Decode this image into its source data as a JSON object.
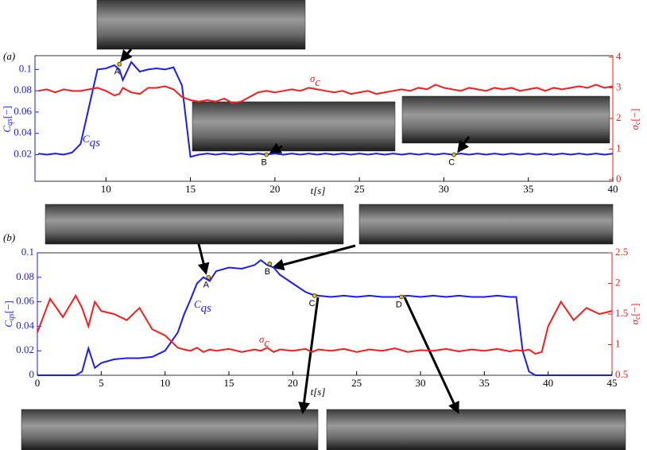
{
  "chart_data": [
    {
      "type": "line",
      "panel": "(a)",
      "xlabel": "t[s]",
      "ylabel": {
        "main": "C",
        "sub": "qs",
        "unit": "[−]"
      },
      "y2label": {
        "main": "σ",
        "sub": "c",
        "unit": "[−]"
      },
      "xlim": [
        5.8,
        40
      ],
      "xticks": [
        10,
        15,
        20,
        25,
        30,
        35,
        40
      ],
      "ylim": [
        -0.005,
        0.113
      ],
      "yticks": [
        0.02,
        0.04,
        0.06,
        0.08,
        0.1
      ],
      "y2lim": [
        -0.05,
        4.05
      ],
      "y2ticks": [
        0,
        1,
        2,
        3,
        4
      ],
      "x": [
        6,
        6.5,
        7,
        7.5,
        8,
        8.5,
        9,
        9.5,
        10,
        10.5,
        10.8,
        11,
        11.5,
        12,
        12.5,
        13,
        13.5,
        14,
        14.5,
        15,
        15.5,
        16,
        16.5,
        17,
        17.5,
        18,
        18.5,
        19,
        19.5,
        20,
        20.5,
        21,
        21.5,
        22,
        22.5,
        23,
        23.5,
        24,
        24.5,
        25,
        25.5,
        26,
        26.5,
        27,
        27.5,
        28,
        28.5,
        29,
        29.5,
        30,
        30.5,
        31,
        31.5,
        32,
        32.5,
        33,
        33.5,
        34,
        34.5,
        35,
        35.5,
        36,
        36.5,
        37,
        37.5,
        38,
        38.5,
        39,
        39.5,
        40
      ],
      "series": [
        {
          "name": "C",
          "subscript": "qs",
          "color": "#1a1aff",
          "values": [
            0.021,
            0.02,
            0.021,
            0.02,
            0.022,
            0.03,
            0.065,
            0.1,
            0.101,
            0.104,
            0.1,
            0.09,
            0.107,
            0.098,
            0.1,
            0.101,
            0.1,
            0.102,
            0.085,
            0.018,
            0.02,
            0.021,
            0.02,
            0.021,
            0.02,
            0.021,
            0.02,
            0.021,
            0.02,
            0.021,
            0.02,
            0.021,
            0.02,
            0.021,
            0.02,
            0.021,
            0.02,
            0.021,
            0.02,
            0.021,
            0.02,
            0.021,
            0.02,
            0.021,
            0.02,
            0.021,
            0.02,
            0.021,
            0.02,
            0.021,
            0.02,
            0.021,
            0.02,
            0.021,
            0.02,
            0.021,
            0.02,
            0.021,
            0.02,
            0.021,
            0.02,
            0.021,
            0.02,
            0.021,
            0.02,
            0.021,
            0.02,
            0.021,
            0.02,
            0.021
          ]
        },
        {
          "name": "σ",
          "subscript": "c",
          "color": "#ff1a1a",
          "axis": "y2",
          "values": [
            2.9,
            2.95,
            2.85,
            2.95,
            2.9,
            2.9,
            2.95,
            3.0,
            2.9,
            2.75,
            2.8,
            3.0,
            2.85,
            2.8,
            3.0,
            3.0,
            3.05,
            2.95,
            2.7,
            2.6,
            2.55,
            2.6,
            2.55,
            2.65,
            2.5,
            2.55,
            2.7,
            2.85,
            2.9,
            2.85,
            2.9,
            2.95,
            2.9,
            3.0,
            2.95,
            2.9,
            2.85,
            2.9,
            2.8,
            2.85,
            2.9,
            2.8,
            2.85,
            2.9,
            2.95,
            2.9,
            3.0,
            2.95,
            3.1,
            3.0,
            2.95,
            2.9,
            3.0,
            2.95,
            2.9,
            3.0,
            2.95,
            3.0,
            2.9,
            2.95,
            3.0,
            2.9,
            3.0,
            2.95,
            3.0,
            3.05,
            3.0,
            3.1,
            3.0,
            3.05
          ]
        }
      ],
      "annotations": [
        {
          "text": "A",
          "x": 10.8,
          "y": 0.105
        },
        {
          "text": "B",
          "x": 19.5,
          "y": 0.02
        },
        {
          "text": "C",
          "x": 30.6,
          "y": 0.02
        }
      ]
    },
    {
      "type": "line",
      "panel": "(b)",
      "xlabel": "t[s]",
      "ylabel": {
        "main": "C",
        "sub": "qs",
        "unit": "[−]"
      },
      "y2label": {
        "main": "σ",
        "sub": "c",
        "unit": "[−]"
      },
      "xlim": [
        0,
        45
      ],
      "xticks": [
        0,
        5,
        10,
        15,
        20,
        25,
        30,
        35,
        40,
        45
      ],
      "ylim": [
        0,
        0.1
      ],
      "yticks": [
        0,
        0.02,
        0.04,
        0.06,
        0.08,
        0.1
      ],
      "y2lim": [
        0.5,
        2.5
      ],
      "y2ticks": [
        0.5,
        1,
        1.5,
        2,
        2.5
      ],
      "x": [
        0,
        1,
        2,
        3,
        3.5,
        4,
        4.5,
        5,
        6,
        7,
        8,
        9,
        10,
        11,
        11.5,
        12,
        12.5,
        13,
        13.5,
        14,
        15,
        16,
        17,
        17.5,
        18,
        18.5,
        19,
        20,
        21,
        21.5,
        22,
        23,
        24,
        25,
        26,
        27,
        28,
        29,
        30,
        31,
        32,
        33,
        34,
        35,
        36,
        37,
        37.5,
        38,
        38.5,
        39,
        39.5,
        40,
        40.5,
        41,
        42,
        43,
        44,
        45
      ],
      "series": [
        {
          "name": "C",
          "subscript": "qs",
          "color": "#1a1aff",
          "values": [
            0,
            0,
            0,
            0,
            0.003,
            0.022,
            0.006,
            0.01,
            0.013,
            0.014,
            0.014,
            0.015,
            0.02,
            0.035,
            0.05,
            0.062,
            0.075,
            0.08,
            0.077,
            0.085,
            0.088,
            0.087,
            0.09,
            0.094,
            0.09,
            0.088,
            0.082,
            0.075,
            0.068,
            0.066,
            0.065,
            0.064,
            0.065,
            0.064,
            0.065,
            0.064,
            0.064,
            0.065,
            0.064,
            0.065,
            0.064,
            0.065,
            0.064,
            0.064,
            0.065,
            0.064,
            0.064,
            0.02,
            0.003,
            0,
            0,
            0,
            0,
            0,
            0,
            0,
            0,
            0
          ]
        },
        {
          "name": "σ",
          "subscript": "c",
          "color": "#ff1a1a",
          "axis": "y2",
          "values": [
            1.2,
            1.75,
            1.45,
            1.8,
            1.6,
            1.3,
            1.7,
            1.55,
            1.5,
            1.4,
            1.6,
            1.25,
            1.15,
            0.95,
            0.92,
            0.9,
            0.95,
            0.88,
            0.92,
            0.9,
            0.93,
            0.88,
            0.92,
            0.9,
            0.95,
            0.88,
            0.92,
            0.9,
            0.93,
            0.88,
            0.92,
            0.9,
            0.93,
            0.88,
            0.92,
            0.9,
            0.94,
            0.88,
            0.91,
            0.9,
            0.93,
            0.89,
            0.92,
            0.9,
            0.93,
            0.89,
            0.91,
            0.9,
            0.92,
            0.85,
            0.88,
            1.3,
            1.5,
            1.7,
            1.4,
            1.6,
            1.5,
            1.55
          ]
        }
      ],
      "annotations": [
        {
          "text": "A",
          "x": 13.4,
          "y": 0.08
        },
        {
          "text": "B",
          "x": 18.2,
          "y": 0.091
        },
        {
          "text": "C",
          "x": 21.7,
          "y": 0.065
        },
        {
          "text": "D",
          "x": 28.5,
          "y": 0.064
        }
      ]
    }
  ]
}
